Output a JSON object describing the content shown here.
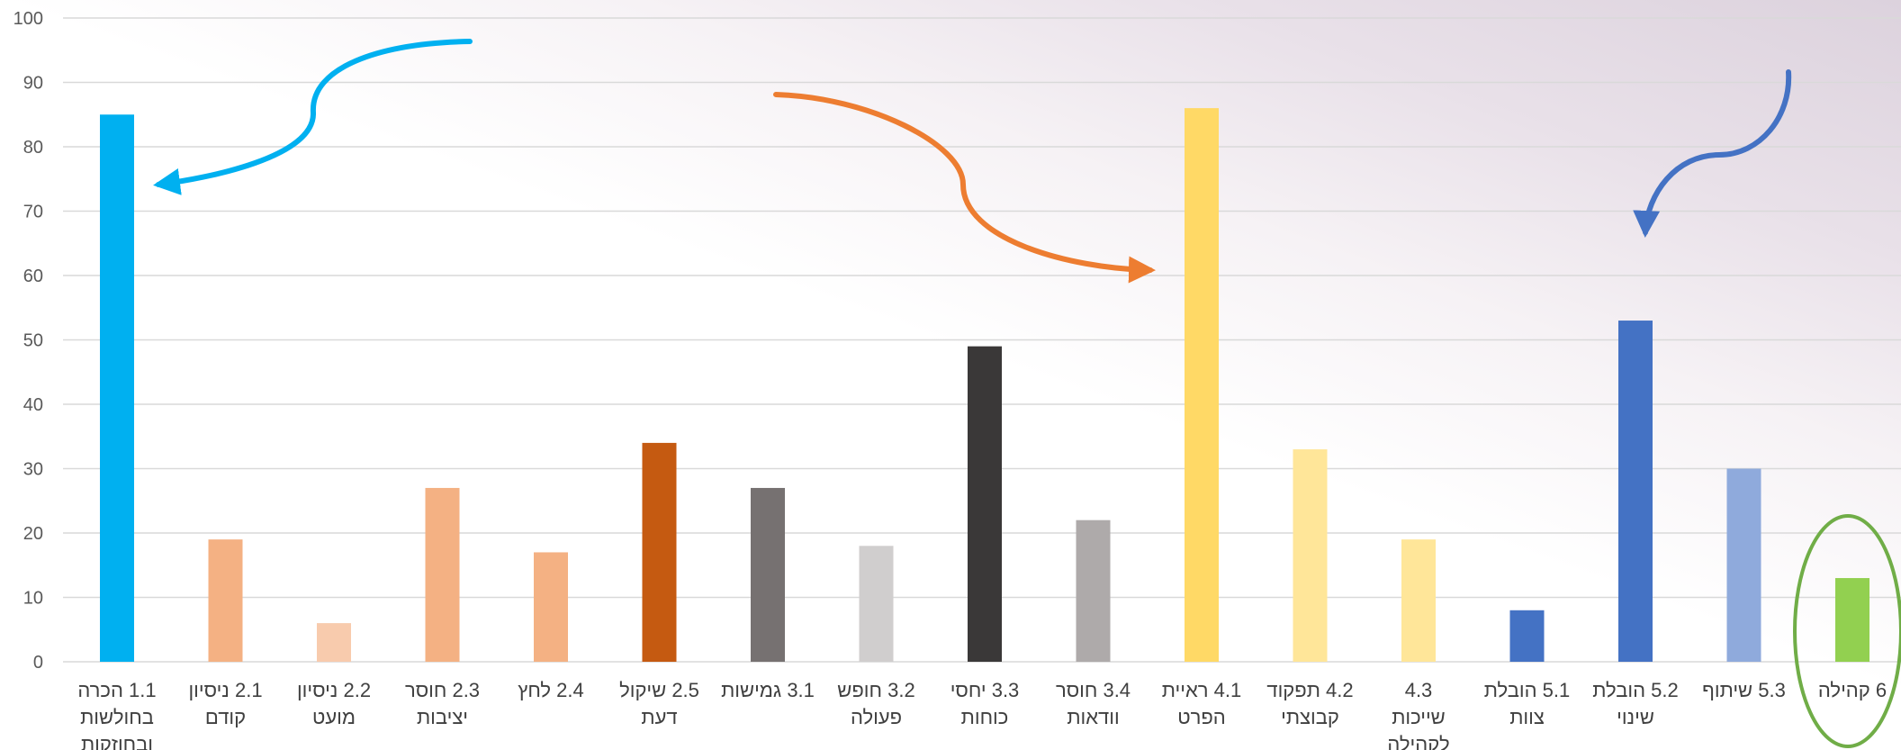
{
  "chart_data": {
    "type": "bar",
    "title": "",
    "xlabel": "",
    "ylabel": "",
    "ylim": [
      0,
      100
    ],
    "yticks": [
      0,
      10,
      20,
      30,
      40,
      50,
      60,
      70,
      80,
      90,
      100
    ],
    "grid": true,
    "legend": "none",
    "categories": [
      {
        "label_lines": [
          "1.1  הכרה",
          "בחולשות",
          "ובחוזקות"
        ],
        "value": 85,
        "color": "#00b0f0"
      },
      {
        "label_lines": [
          "2.1  ניסיון",
          "קודם"
        ],
        "value": 19,
        "color": "#f4b183"
      },
      {
        "label_lines": [
          "2.2  ניסיון",
          "מועט"
        ],
        "value": 6,
        "color": "#f8cbad"
      },
      {
        "label_lines": [
          "2.3  חוסר",
          "יציבות"
        ],
        "value": 27,
        "color": "#f4b183"
      },
      {
        "label_lines": [
          "2.4  לחץ"
        ],
        "value": 17,
        "color": "#f4b183"
      },
      {
        "label_lines": [
          "2.5  שיקול",
          "דעת"
        ],
        "value": 34,
        "color": "#c55a11"
      },
      {
        "label_lines": [
          "3.1  גמישות"
        ],
        "value": 27,
        "color": "#767171"
      },
      {
        "label_lines": [
          "3.2  חופש",
          "פעולה"
        ],
        "value": 18,
        "color": "#d0cece"
      },
      {
        "label_lines": [
          "3.3  יחסי",
          "כוחות"
        ],
        "value": 49,
        "color": "#3a3838"
      },
      {
        "label_lines": [
          "3.4  חוסר",
          "וודאות"
        ],
        "value": 22,
        "color": "#aeaaaa"
      },
      {
        "label_lines": [
          "4.1  ראיית",
          "הפרט"
        ],
        "value": 86,
        "color": "#ffd966"
      },
      {
        "label_lines": [
          "4.2  תפקוד",
          "קבוצתי"
        ],
        "value": 33,
        "color": "#ffe699"
      },
      {
        "label_lines": [
          "4.3",
          "שייכות",
          "לקהילה"
        ],
        "value": 19,
        "color": "#ffe699"
      },
      {
        "label_lines": [
          "5.1  הובלת",
          "צוות"
        ],
        "value": 8,
        "color": "#4472c4"
      },
      {
        "label_lines": [
          "5.2  הובלת",
          "שינוי"
        ],
        "value": 53,
        "color": "#4472c4"
      },
      {
        "label_lines": [
          "5.3  שיתוף"
        ],
        "value": 30,
        "color": "#8faadc"
      },
      {
        "label_lines": [
          "6  קהילה"
        ],
        "value": 13,
        "color": "#92d050"
      }
    ],
    "annotations": [
      {
        "type": "curved-arrow",
        "color": "#00b0f0",
        "points_to": "1.1"
      },
      {
        "type": "curved-arrow",
        "color": "#ed7d31",
        "points_to": "4.1"
      },
      {
        "type": "curved-arrow",
        "color": "#4472c4",
        "points_to": "5.2"
      },
      {
        "type": "ellipse",
        "color": "#70ad47",
        "surrounds": "6"
      }
    ],
    "colors": {
      "grid": "#d9d9d9",
      "tick_text": "#595959",
      "label_text": "#404040"
    }
  }
}
